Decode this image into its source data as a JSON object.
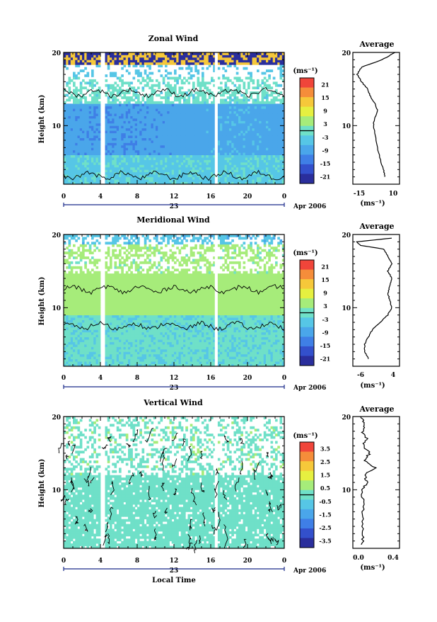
{
  "xlabel": "Local Time",
  "date_label": "Apr 2006",
  "day_label": "23",
  "x_ticks": [
    "0",
    "4",
    "8",
    "12",
    "16",
    "20",
    "0"
  ],
  "y_ticks": [
    "20",
    "10"
  ],
  "panels": [
    {
      "title": "Zonal Wind",
      "ylabel": "Height (km)",
      "unit": "(ms⁻¹)",
      "avg_title": "Average",
      "avg_xlabel": "(ms⁻¹)",
      "avg_x_ticks": [
        "-15",
        "10"
      ],
      "avg_y_ticks": [
        "20",
        "10"
      ],
      "cbar_ticks": [
        "21",
        "15",
        "9",
        "3",
        "-3",
        "-9",
        "-15",
        "-21"
      ]
    },
    {
      "title": "Meridional Wind",
      "ylabel": "Height (km)",
      "unit": "(ms⁻¹)",
      "avg_title": "Average",
      "avg_xlabel": "(ms⁻¹)",
      "avg_x_ticks": [
        "-6",
        "4"
      ],
      "avg_y_ticks": [
        "20",
        "10"
      ],
      "cbar_ticks": [
        "21",
        "15",
        "9",
        "3",
        "-3",
        "-9",
        "-15",
        "-21"
      ]
    },
    {
      "title": "Vertical Wind",
      "ylabel": "Height (km)",
      "unit": "(ms⁻¹)",
      "avg_title": "Average",
      "avg_xlabel": "(ms⁻¹)",
      "avg_x_ticks": [
        "0.0",
        "0.4"
      ],
      "avg_y_ticks": [
        "20",
        "10"
      ],
      "cbar_ticks": [
        "3.5",
        "2.5",
        "1.5",
        "0.5",
        "-0.5",
        "-1.5",
        "-2.5",
        "-3.5"
      ]
    }
  ],
  "chart_data": [
    {
      "type": "heatmap",
      "title": "Zonal Wind",
      "ylabel": "Height (km)",
      "xlabel": "",
      "xlim": [
        0,
        24
      ],
      "ylim": [
        2,
        20
      ],
      "data_gaps_hours": [
        4.3,
        16.6
      ],
      "colorbar_range": [
        -21,
        21
      ],
      "colorscale": [
        "#2a2e9c",
        "#3350cc",
        "#3f7fe6",
        "#4aa6ea",
        "#56c6e6",
        "#6fe0c8",
        "#a6ec7a",
        "#e6f040",
        "#f6c83a",
        "#f58d3a",
        "#f0453a"
      ],
      "profile": {
        "type": "line",
        "title": "Average",
        "xlim": [
          -20,
          12
        ],
        "heights": [
          3,
          4,
          6,
          8,
          10,
          11,
          12,
          13,
          14,
          15,
          16,
          17,
          18,
          19,
          20
        ],
        "values": [
          2,
          1,
          -2,
          -4,
          -6,
          -5,
          -3,
          -5,
          -8,
          -10,
          -14,
          -17,
          -14,
          0,
          9
        ]
      }
    },
    {
      "type": "heatmap",
      "title": "Meridional Wind",
      "ylabel": "Height (km)",
      "xlabel": "",
      "xlim": [
        0,
        24
      ],
      "ylim": [
        2,
        20
      ],
      "data_gaps_hours": [
        4.3,
        16.6
      ],
      "colorbar_range": [
        -21,
        21
      ],
      "colorscale": [
        "#2a2e9c",
        "#3350cc",
        "#3f7fe6",
        "#4aa6ea",
        "#56c6e6",
        "#6fe0c8",
        "#a6ec7a",
        "#e6f040",
        "#f6c83a",
        "#f58d3a",
        "#f0453a"
      ],
      "profile": {
        "type": "line",
        "title": "Average",
        "xlim": [
          -7,
          5
        ],
        "heights": [
          3,
          4,
          5,
          6,
          7,
          8,
          9,
          10,
          11,
          12,
          13,
          14,
          15,
          16,
          17,
          18,
          18.5,
          19,
          19.5
        ],
        "values": [
          -3,
          -4,
          -4,
          -3,
          -2,
          0,
          2,
          3,
          2.5,
          2,
          2.5,
          3,
          2,
          3,
          2,
          1,
          -5,
          -6,
          3
        ]
      }
    },
    {
      "type": "heatmap",
      "title": "Vertical Wind",
      "ylabel": "Height (km)",
      "xlabel": "Local Time",
      "xlim": [
        0,
        24
      ],
      "ylim": [
        2,
        20
      ],
      "data_gaps_hours": [
        4.3,
        16.6
      ],
      "colorbar_range": [
        -3.5,
        3.5
      ],
      "colorscale": [
        "#2a2e9c",
        "#3350cc",
        "#3f7fe6",
        "#4aa6ea",
        "#56c6e6",
        "#6fe0c8",
        "#a6ec7a",
        "#e6f040",
        "#f6c83a",
        "#f58d3a",
        "#f0453a"
      ],
      "profile": {
        "type": "line",
        "title": "Average",
        "xlim": [
          -0.1,
          0.5
        ],
        "heights": [
          2.5,
          4,
          6,
          8,
          10,
          11,
          12,
          13,
          14,
          15,
          16,
          17,
          18,
          19,
          20
        ],
        "values": [
          0.02,
          0.03,
          0.02,
          0.03,
          0.02,
          0.08,
          0.05,
          0.18,
          0.04,
          0.12,
          0.03,
          0.08,
          0.02,
          0.06,
          0.0
        ]
      }
    }
  ]
}
